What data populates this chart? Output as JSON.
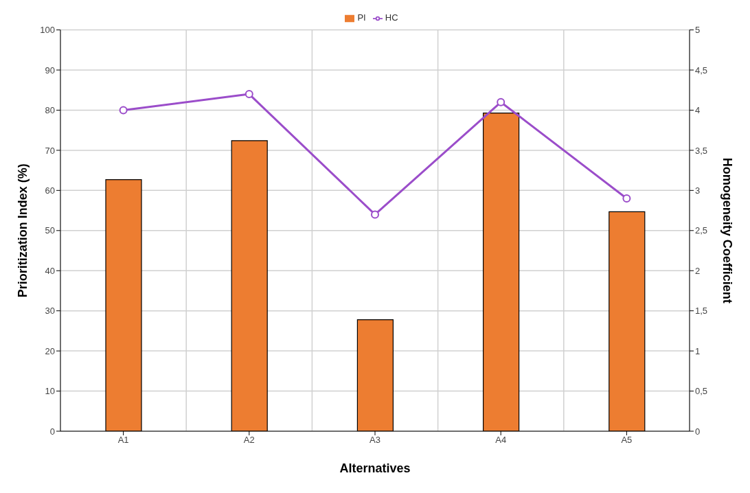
{
  "chart_data": {
    "type": "bar",
    "categories": [
      "A1",
      "A2",
      "A3",
      "A4",
      "A5"
    ],
    "xlabel": "Alternatives",
    "ylabel": "Prioritization Index (%)",
    "y2label": "Homogeneity Coefficient",
    "series": [
      {
        "name": "PI",
        "color": "#ed7d31",
        "values": [
          62.7,
          72.4,
          27.8,
          79.3,
          54.7
        ]
      },
      {
        "name": "HC",
        "type": "line",
        "axis": "y2",
        "color": "#9b4dca",
        "values": [
          4.0,
          4.2,
          2.7,
          4.1,
          2.9
        ]
      }
    ],
    "ylim": [
      0,
      100
    ],
    "yticks": [
      0,
      10,
      20,
      30,
      40,
      50,
      60,
      70,
      80,
      90,
      100
    ],
    "y2lim": [
      0,
      5
    ],
    "y2ticks": [
      0,
      {
        "value": 0.5,
        "label": "0,5"
      },
      1,
      {
        "value": 1.5,
        "label": "1,5"
      },
      2,
      {
        "value": 2.5,
        "label": "2,5"
      },
      3,
      {
        "value": 3.5,
        "label": "3,5"
      },
      4,
      {
        "value": 4.5,
        "label": "4,5"
      },
      5
    ],
    "grid": true,
    "legend": "top",
    "marker": "circle",
    "line_style": "solid"
  }
}
